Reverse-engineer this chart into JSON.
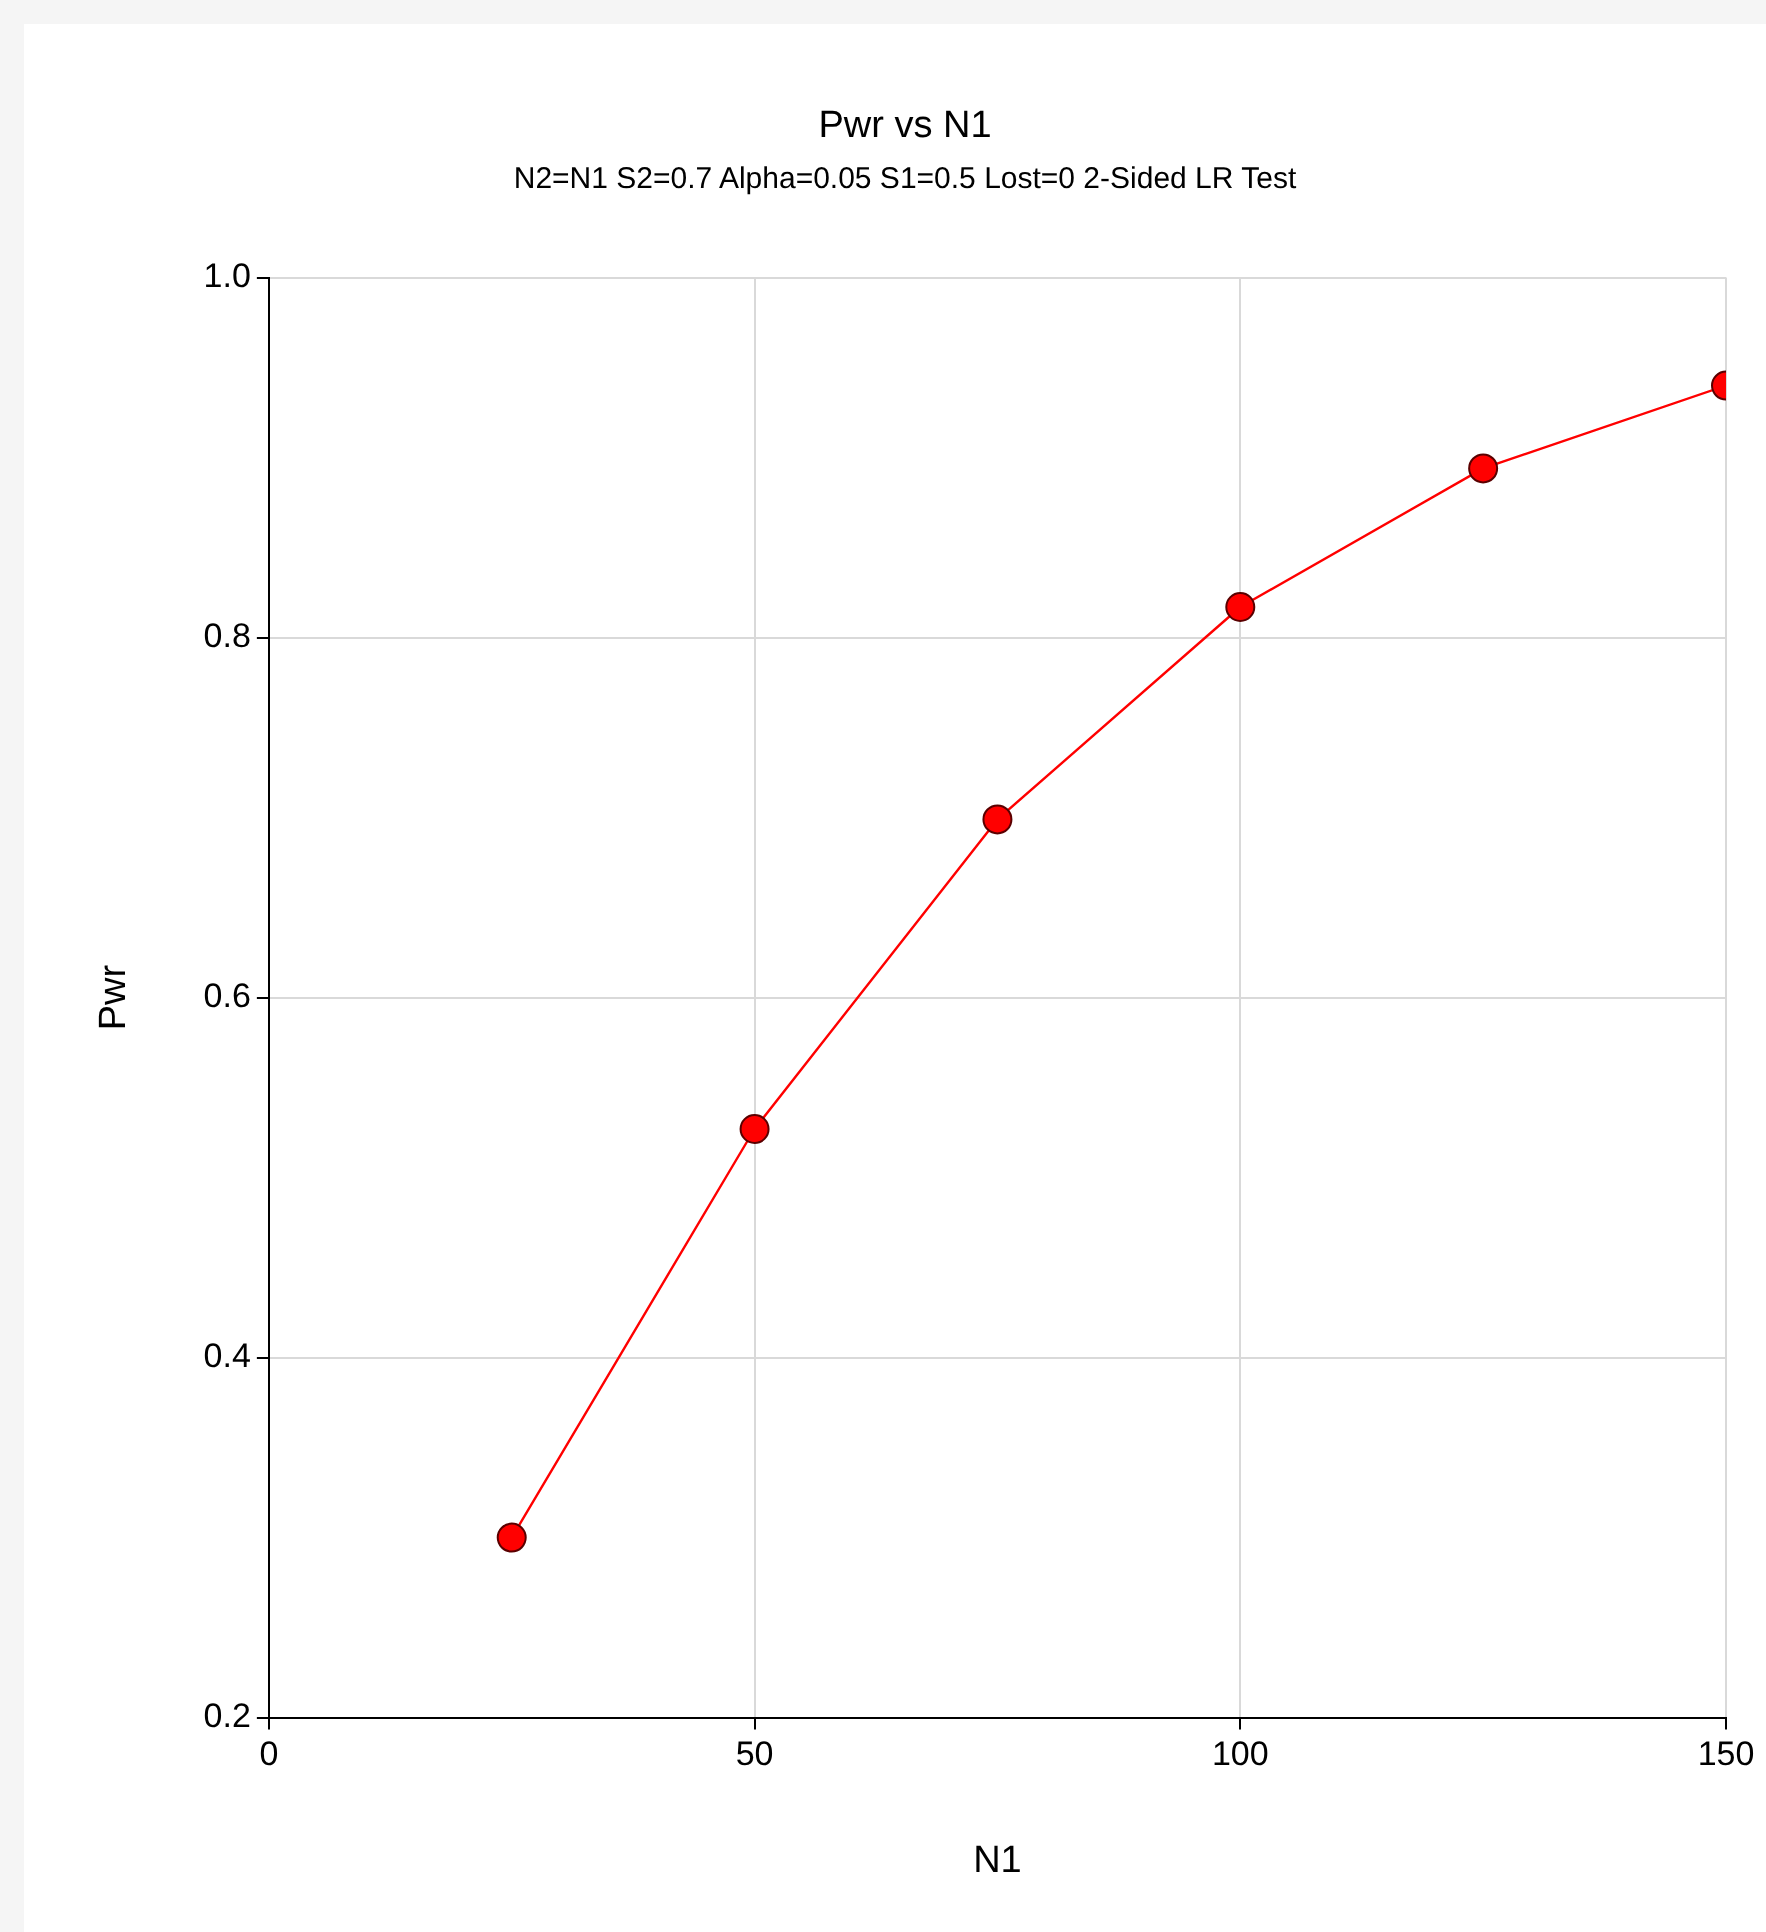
{
  "chart_data": {
    "type": "line",
    "title": "Pwr vs N1",
    "subtitle": "N2=N1 S2=0.7 Alpha=0.05 S1=0.5 Lost=0 2-Sided LR Test",
    "xlabel": "N1",
    "ylabel": "Pwr",
    "x": [
      25,
      50,
      75,
      100,
      125,
      150
    ],
    "series": [
      {
        "color": "#ff0000",
        "values": [
          0.3,
          0.527,
          0.699,
          0.817,
          0.894,
          0.94
        ]
      }
    ],
    "xlim": [
      0,
      150
    ],
    "xticks": [
      0,
      50,
      100,
      150
    ],
    "ylim": [
      0.2,
      1.0
    ],
    "yticks": [
      {
        "value": 0.2,
        "label": "0.2"
      },
      {
        "value": 0.4,
        "label": "0.4"
      },
      {
        "value": 0.6,
        "label": "0.6"
      },
      {
        "value": 0.8,
        "label": "0.8"
      },
      {
        "value": 1.0,
        "label": "1.0"
      }
    ],
    "grid": true,
    "legend": false,
    "marker": "circle",
    "line_style": "solid"
  }
}
